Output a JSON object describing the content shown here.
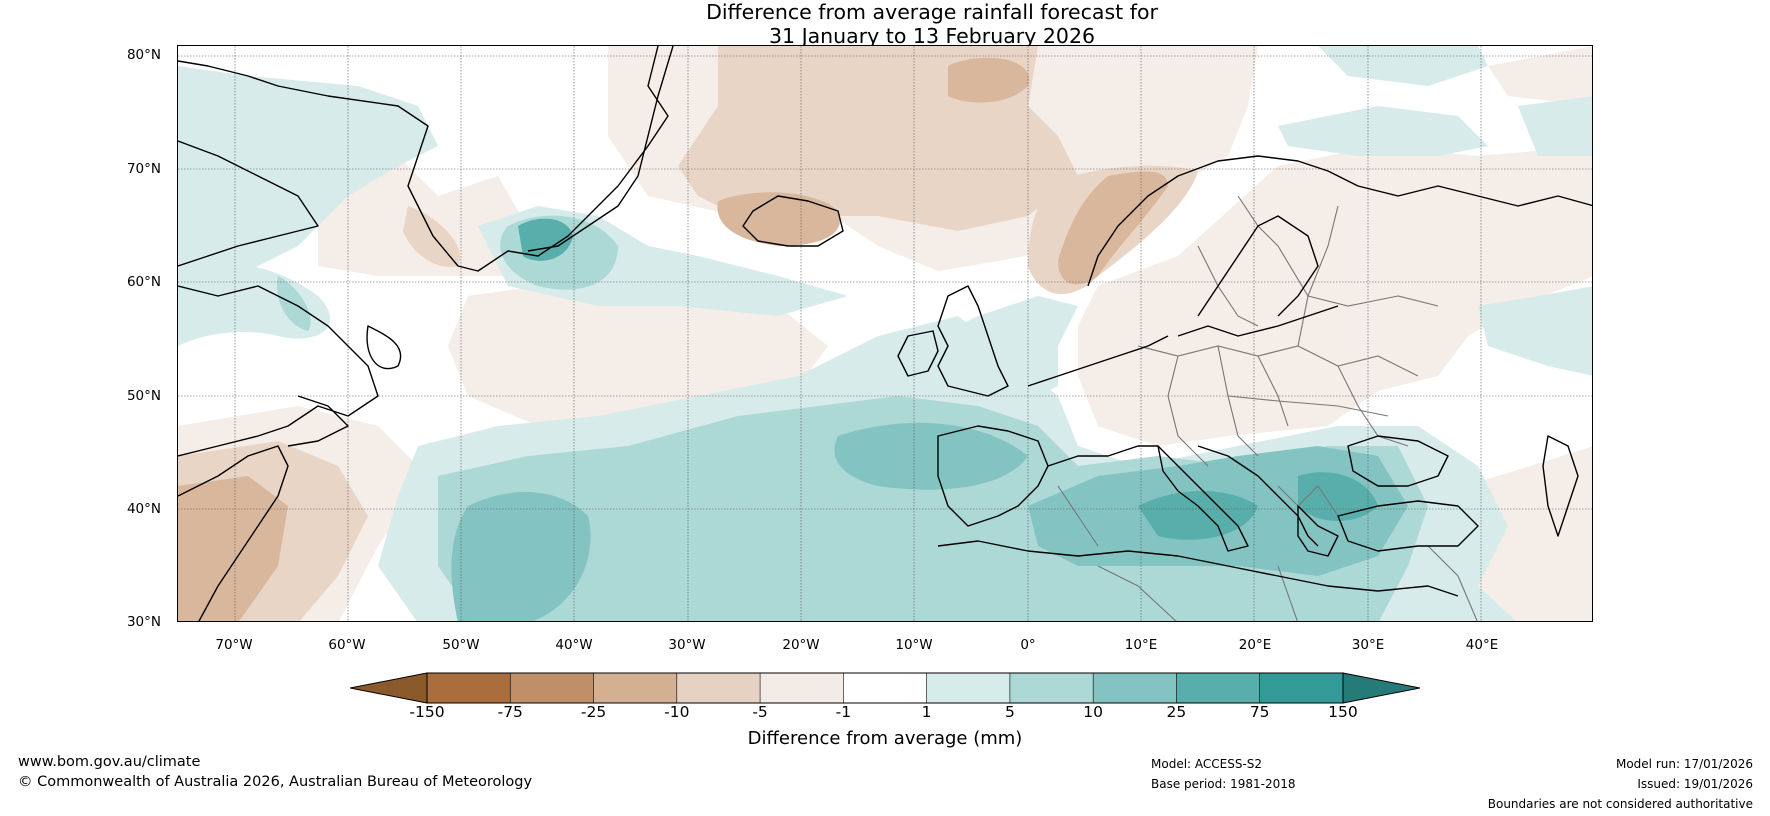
{
  "title": {
    "line1": "Difference from average rainfall forecast for",
    "line2": "31 January to 13 February 2026"
  },
  "map": {
    "latitude_labels": [
      "80°N",
      "70°N",
      "60°N",
      "50°N",
      "40°N",
      "30°N"
    ],
    "longitude_labels": [
      "70°W",
      "60°W",
      "50°W",
      "40°W",
      "30°W",
      "20°W",
      "10°W",
      "0°",
      "10°E",
      "20°E",
      "30°E",
      "40°E"
    ],
    "lat_range": [
      30,
      81
    ],
    "lon_range": [
      -75,
      50
    ],
    "gridlines": true,
    "colors": {
      "wet_1_5": "#d6ebea",
      "wet_5_10": "#acd8d6",
      "wet_10_25": "#83c3c1",
      "wet_25_75": "#58aeab",
      "dry_1_5": "#f4ede8",
      "dry_5_10": "#e9d5c6",
      "dry_10_25": "#d9b79c",
      "coastline": "#000000",
      "borders": "#777777"
    }
  },
  "colorbar": {
    "ticks": [
      "-150",
      "-75",
      "-25",
      "-10",
      "-5",
      "-1",
      "1",
      "5",
      "10",
      "25",
      "75",
      "150"
    ],
    "colors": [
      "#8b5a2b",
      "#a96d3e",
      "#c08f68",
      "#d4b093",
      "#e6d2c2",
      "#f3ece6",
      "#ffffff",
      "#d6ebea",
      "#acd8d6",
      "#83c3c1",
      "#58aeab",
      "#339b97",
      "#267a77"
    ],
    "label": "Difference from average (mm)"
  },
  "footer": {
    "website": "www.bom.gov.au/climate",
    "copyright": "© Commonwealth of Australia 2026, Australian Bureau of Meteorology",
    "model": "Model: ACCESS-S2",
    "base_period": "Base period: 1981-2018",
    "model_run": "Model run: 17/01/2026",
    "issued": "Issued: 19/01/2026",
    "disclaimer": "Boundaries are not considered authoritative"
  }
}
